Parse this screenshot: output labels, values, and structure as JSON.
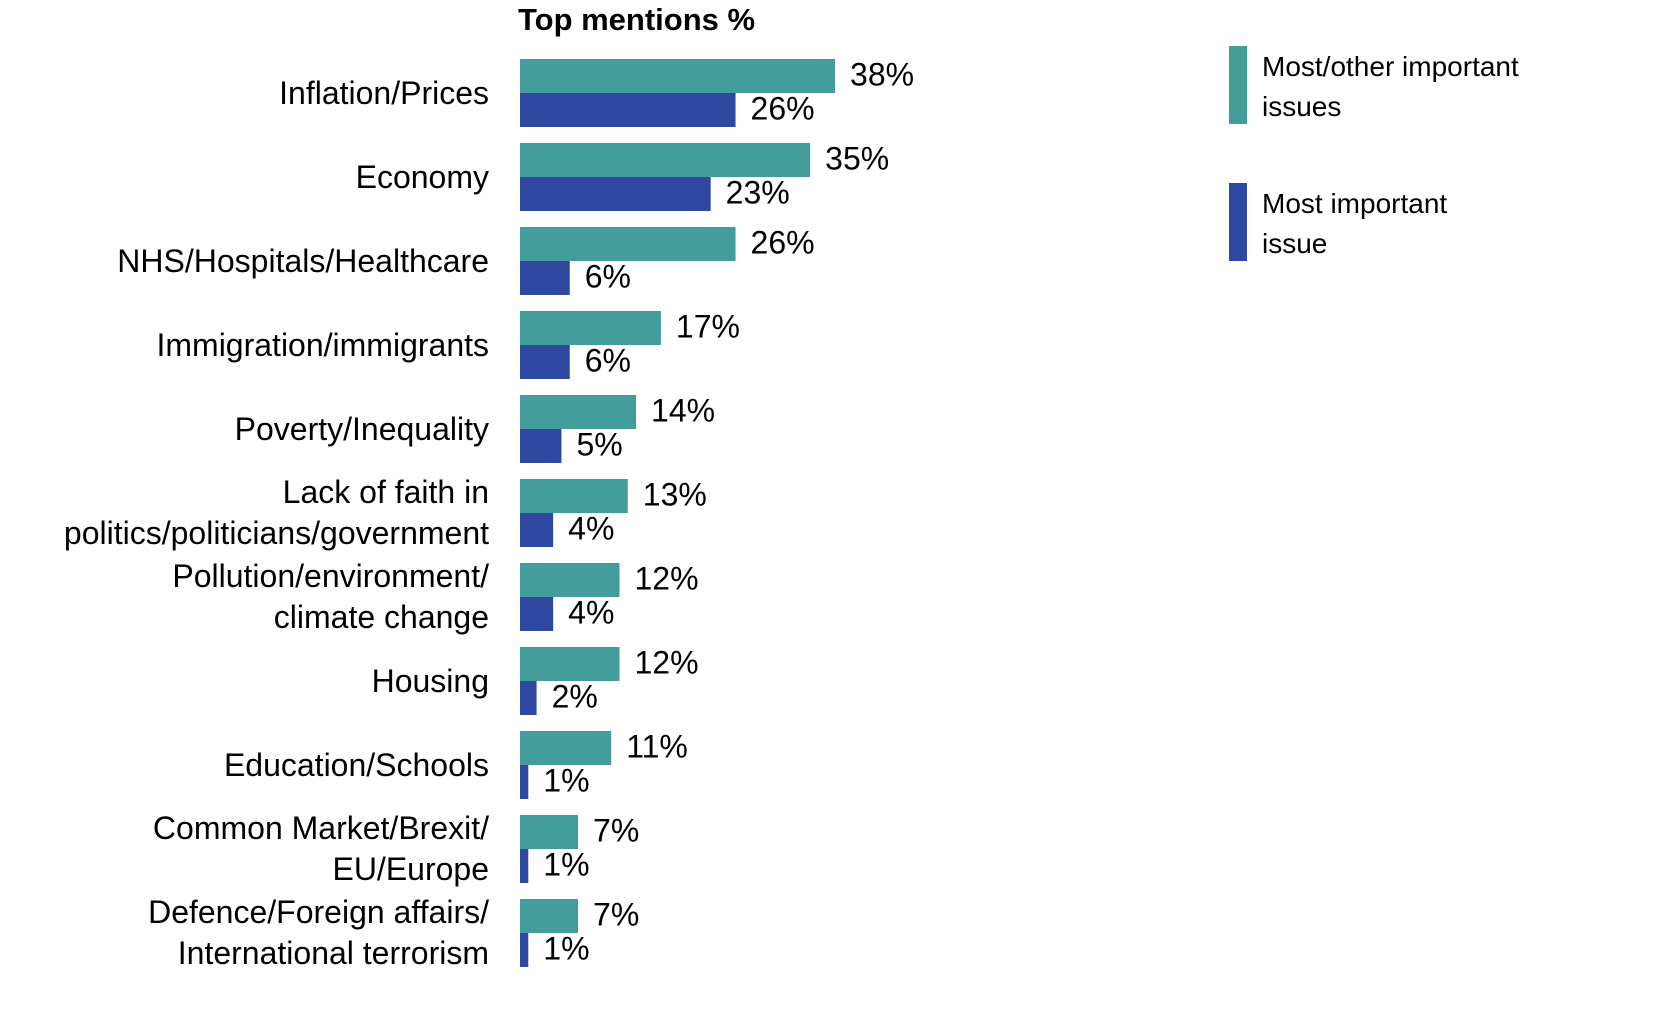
{
  "chart_data": {
    "type": "bar",
    "orientation": "horizontal",
    "title": "Top mentions %",
    "categories": [
      "Inflation/Prices",
      "Economy",
      "NHS/Hospitals/Healthcare",
      "Immigration/immigrants",
      "Poverty/Inequality",
      "Lack of faith in\npolitics/politicians/government",
      "Pollution/environment/\nclimate change",
      "Housing",
      "Education/Schools",
      "Common Market/Brexit/\nEU/Europe",
      "Defence/Foreign affairs/\nInternational terrorism"
    ],
    "series": [
      {
        "name": "Most/other important\nissues",
        "color": "#429c9a",
        "values": [
          38,
          35,
          26,
          17,
          14,
          13,
          12,
          12,
          11,
          7,
          7
        ],
        "value_labels": [
          "38%",
          "35%",
          "26%",
          "17%",
          "14%",
          "13%",
          "12%",
          "12%",
          "11%",
          "7%",
          "7%"
        ]
      },
      {
        "name": "Most important\nissue",
        "color": "#2e47a0",
        "values": [
          26,
          23,
          6,
          6,
          5,
          4,
          4,
          2,
          1,
          1,
          1
        ],
        "value_labels": [
          "26%",
          "23%",
          "6%",
          "6%",
          "5%",
          "4%",
          "4%",
          "2%",
          "1%",
          "1%",
          "1%"
        ]
      }
    ],
    "legend": "top-right"
  }
}
